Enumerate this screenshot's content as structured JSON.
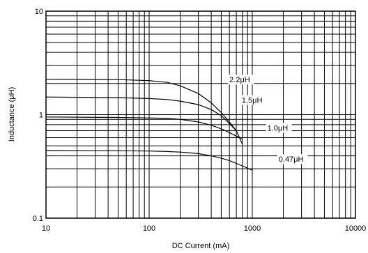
{
  "chart_data": {
    "type": "line",
    "title": "",
    "xlabel": "DC Current (mA)",
    "ylabel": "Inductance (μH)",
    "xscale": "log",
    "yscale": "log",
    "xlim": [
      10,
      10000
    ],
    "ylim": [
      0.1,
      10
    ],
    "grid": true,
    "legend": "none",
    "x_tick_labels": [
      "10",
      "100",
      "1000",
      "10000"
    ],
    "y_tick_labels": [
      "0.1",
      "1",
      "10"
    ],
    "series": [
      {
        "name": "2.2μH",
        "x": [
          10,
          50,
          100,
          150,
          200,
          300,
          400,
          500,
          600,
          700
        ],
        "y": [
          2.2,
          2.18,
          2.13,
          2.05,
          1.9,
          1.6,
          1.3,
          1.05,
          0.85,
          0.7
        ]
      },
      {
        "name": "1.5μH",
        "x": [
          10,
          50,
          100,
          150,
          200,
          300,
          400,
          500,
          600,
          700,
          800
        ],
        "y": [
          1.48,
          1.46,
          1.43,
          1.4,
          1.35,
          1.25,
          1.12,
          0.98,
          0.82,
          0.7,
          0.52
        ]
      },
      {
        "name": "1.0μH",
        "x": [
          10,
          50,
          100,
          150,
          200,
          300,
          400,
          500,
          600,
          700,
          800
        ],
        "y": [
          0.95,
          0.94,
          0.93,
          0.92,
          0.9,
          0.85,
          0.79,
          0.73,
          0.67,
          0.62,
          0.58
        ]
      },
      {
        "name": "0.47μH",
        "x": [
          10,
          50,
          100,
          150,
          200,
          300,
          400,
          500,
          600,
          800,
          1000
        ],
        "y": [
          0.45,
          0.448,
          0.445,
          0.44,
          0.435,
          0.42,
          0.4,
          0.38,
          0.36,
          0.32,
          0.29
        ]
      }
    ],
    "annotations": [
      {
        "text": "2.2μH",
        "x": 600,
        "y": 2.05
      },
      {
        "text": "1.5μH",
        "x": 790,
        "y": 1.3
      },
      {
        "text": "1.0μH",
        "x": 1400,
        "y": 0.7
      },
      {
        "text": "0.47μH",
        "x": 1800,
        "y": 0.35
      }
    ]
  }
}
